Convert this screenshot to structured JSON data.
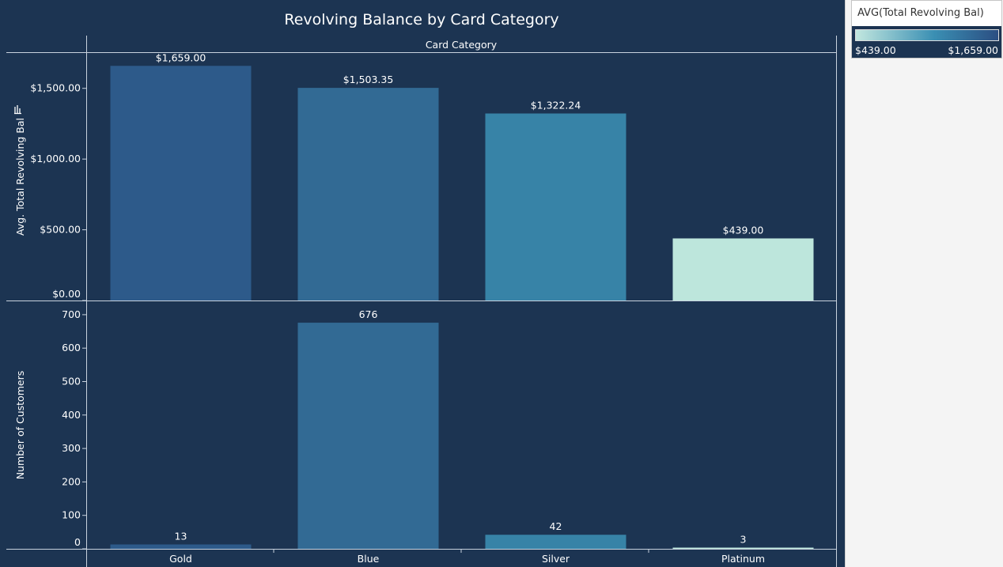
{
  "chart_data": {
    "type": "bar",
    "title": "Revolving Balance by Card Category",
    "column_header": "Card Category",
    "categories": [
      "Gold",
      "Blue",
      "Silver",
      "Platinum"
    ],
    "panels": [
      {
        "id": "avg",
        "ylabel": "Avg. Total Revolving Bal",
        "ylim": [
          0,
          1750
        ],
        "yticks": [
          0,
          500,
          1000,
          1500
        ],
        "ytick_labels": [
          "$0.00",
          "$500.00",
          "$1,000.00",
          "$1,500.00"
        ],
        "values": [
          1659.0,
          1503.35,
          1322.24,
          439.0
        ],
        "value_labels": [
          "$1,659.00",
          "$1,503.35",
          "$1,322.24",
          "$439.00"
        ],
        "colors": [
          "#2d5a8a",
          "#326a94",
          "#3783a7",
          "#bde6dc"
        ]
      },
      {
        "id": "count",
        "ylabel": "Number of Customers",
        "ylim": [
          0,
          740
        ],
        "yticks": [
          0,
          100,
          200,
          300,
          400,
          500,
          600,
          700
        ],
        "ytick_labels": [
          "0",
          "100",
          "200",
          "300",
          "400",
          "500",
          "600",
          "700"
        ],
        "values": [
          13,
          676,
          42,
          3
        ],
        "value_labels": [
          "13",
          "676",
          "42",
          "3"
        ],
        "colors": [
          "#2d5a8a",
          "#326a94",
          "#3783a7",
          "#bde6dc"
        ]
      }
    ],
    "legend": {
      "title": "AVG(Total Revolving Bal)",
      "min_label": "$439.00",
      "max_label": "$1,659.00",
      "color_low": "#c2e7df",
      "color_mid": "#3a8fb3",
      "color_high": "#2b4e82"
    },
    "grid": false
  }
}
